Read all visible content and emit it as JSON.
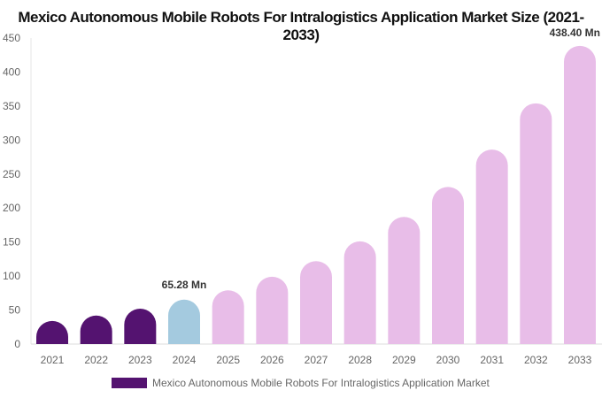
{
  "chart_data": {
    "type": "bar",
    "title": "Mexico Autonomous Mobile Robots For Intralogistics Application Market Size (2021-2033)",
    "categories": [
      "2021",
      "2022",
      "2023",
      "2024",
      "2025",
      "2026",
      "2027",
      "2028",
      "2029",
      "2030",
      "2031",
      "2032",
      "2033"
    ],
    "series": [
      {
        "name": "Mexico Autonomous Mobile Robots For Intralogistics Application Market",
        "values": [
          34,
          42,
          52,
          65.28,
          79,
          99,
          122,
          151,
          187,
          231,
          286,
          354,
          438.4
        ]
      }
    ],
    "data_labels": {
      "3": "65.28 Mn",
      "12": "438.40 Mn"
    },
    "yticks": [
      0,
      50,
      100,
      150,
      200,
      250,
      300,
      350,
      400,
      450
    ],
    "ylim": [
      0,
      450
    ],
    "grid": false,
    "legend_position": "bottom",
    "colors": {
      "historical": "#541370",
      "base_year": "#a4cadf",
      "forecast": "#e8bde8"
    }
  }
}
